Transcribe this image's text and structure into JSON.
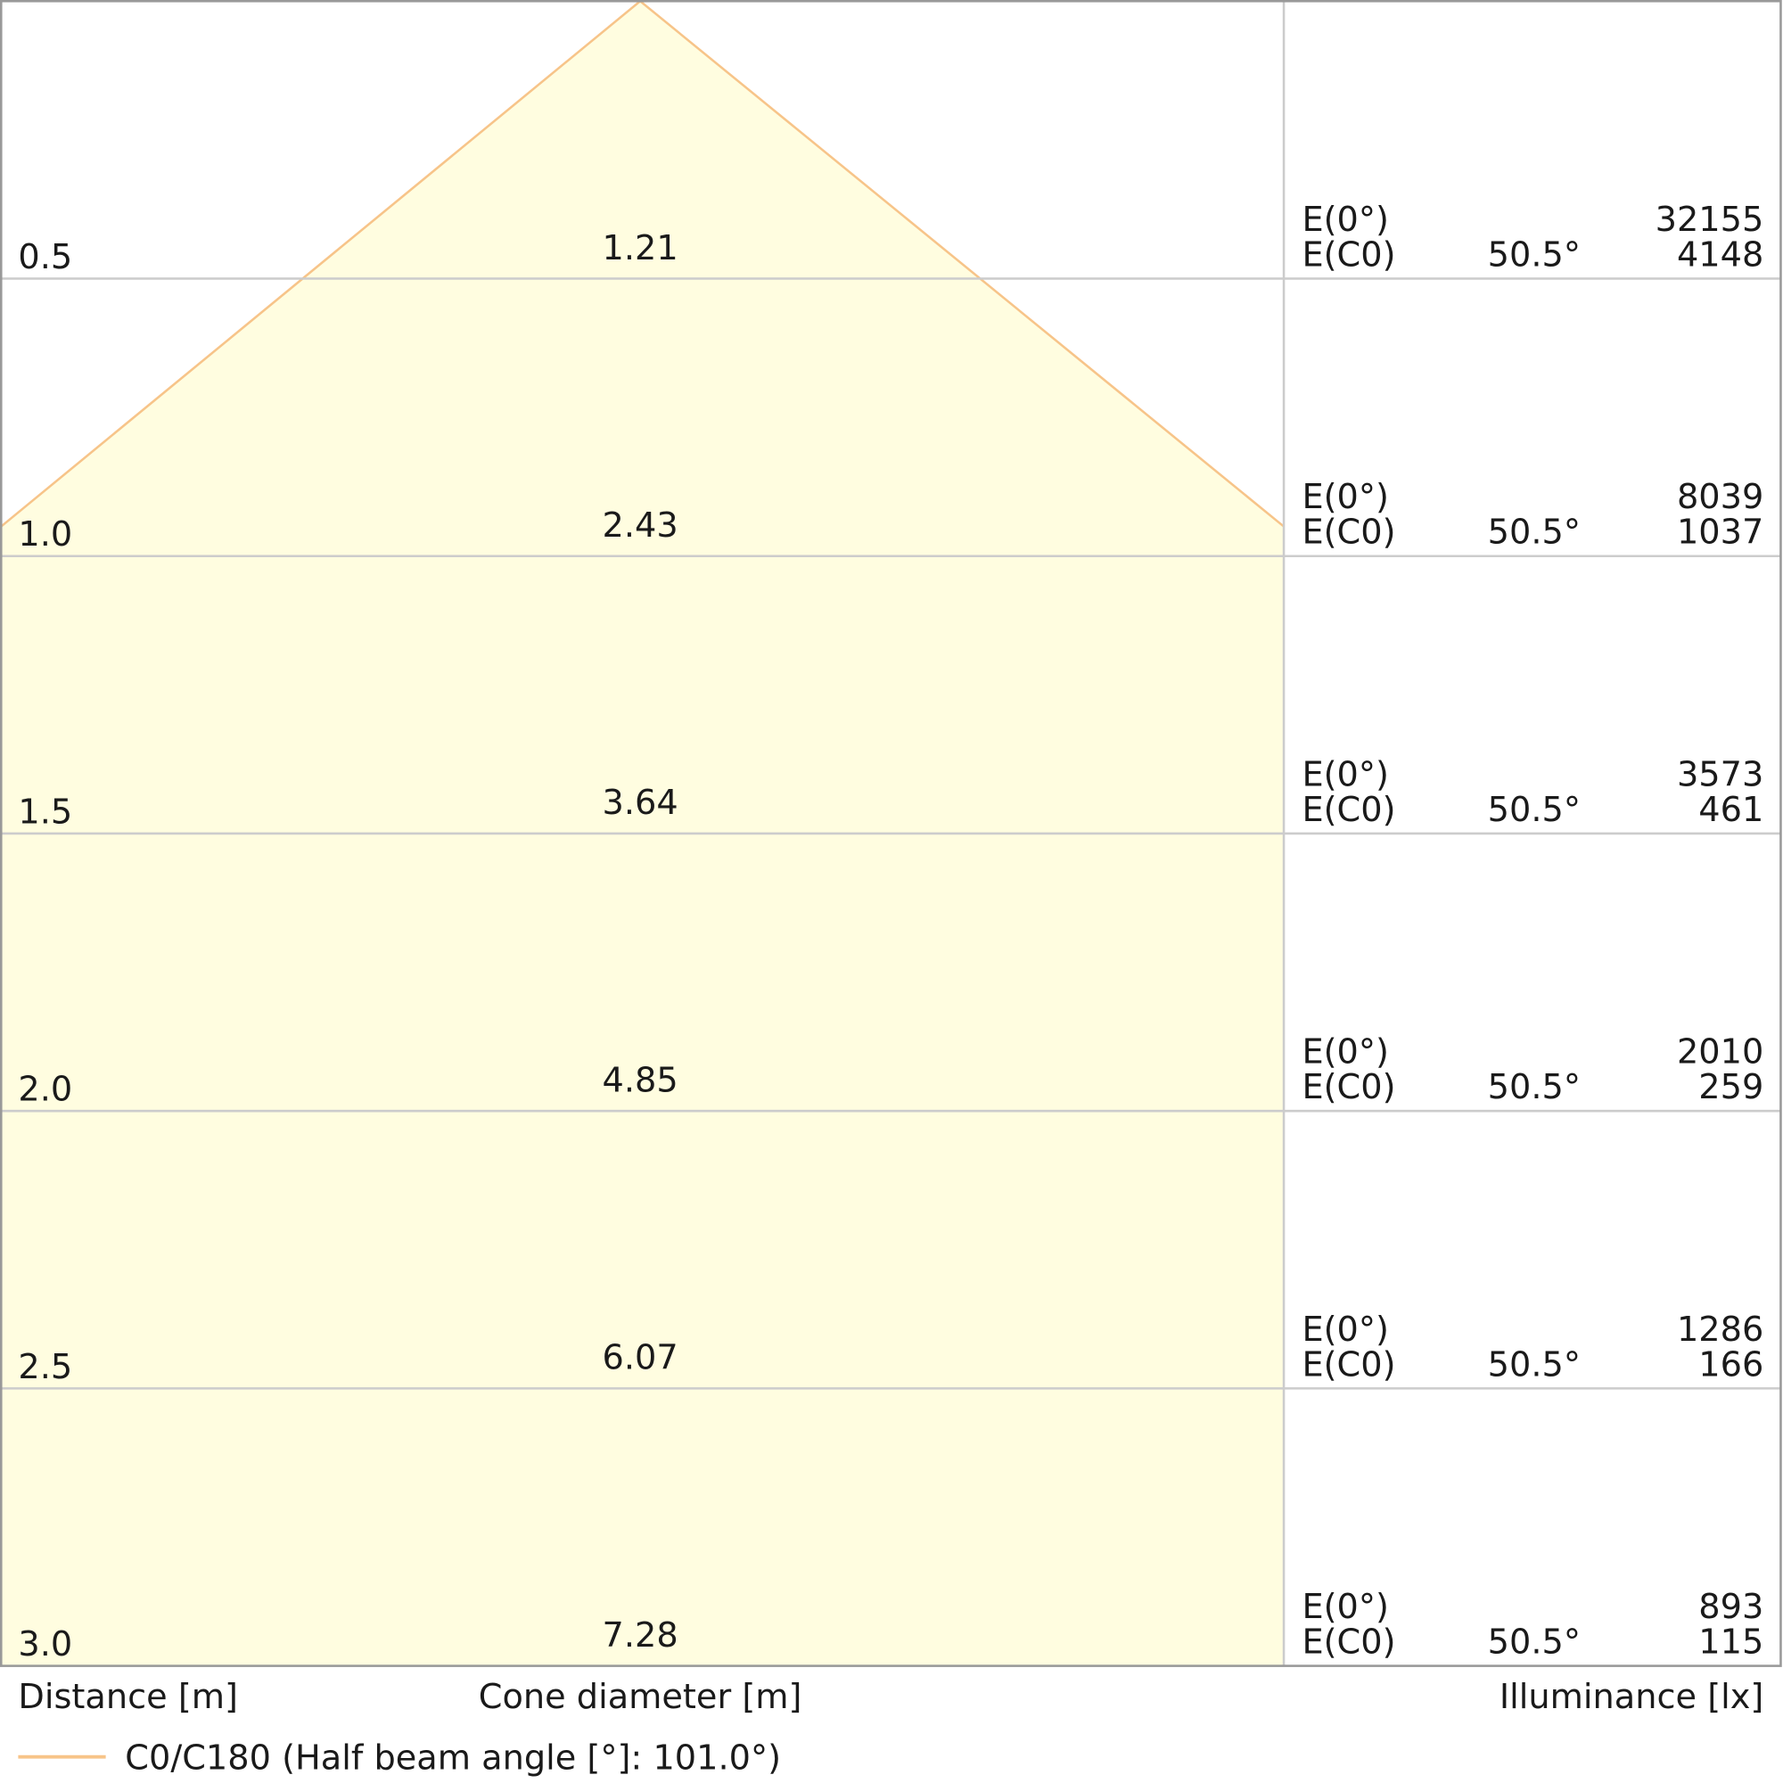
{
  "rows": [
    {
      "distance": "0.5",
      "diameter": "1.21",
      "e0_label": "E(0°)",
      "ec0_label": "E(C0)",
      "angle": "50.5°",
      "e0": "32155",
      "ec0": "4148"
    },
    {
      "distance": "1.0",
      "diameter": "2.43",
      "e0_label": "E(0°)",
      "ec0_label": "E(C0)",
      "angle": "50.5°",
      "e0": "8039",
      "ec0": "1037"
    },
    {
      "distance": "1.5",
      "diameter": "3.64",
      "e0_label": "E(0°)",
      "ec0_label": "E(C0)",
      "angle": "50.5°",
      "e0": "3573",
      "ec0": "461"
    },
    {
      "distance": "2.0",
      "diameter": "4.85",
      "e0_label": "E(0°)",
      "ec0_label": "E(C0)",
      "angle": "50.5°",
      "e0": "2010",
      "ec0": "259"
    },
    {
      "distance": "2.5",
      "diameter": "6.07",
      "e0_label": "E(0°)",
      "ec0_label": "E(C0)",
      "angle": "50.5°",
      "e0": "1286",
      "ec0": "166"
    },
    {
      "distance": "3.0",
      "diameter": "7.28",
      "e0_label": "E(0°)",
      "ec0_label": "E(C0)",
      "angle": "50.5°",
      "e0": "893",
      "ec0": "115"
    }
  ],
  "axis_labels": {
    "distance": "Distance [m]",
    "diameter": "Cone diameter [m]",
    "illuminance": "Illuminance [lx]"
  },
  "legend": {
    "label": "C0/C180 (Half beam angle [°]: 101.0°)"
  }
}
